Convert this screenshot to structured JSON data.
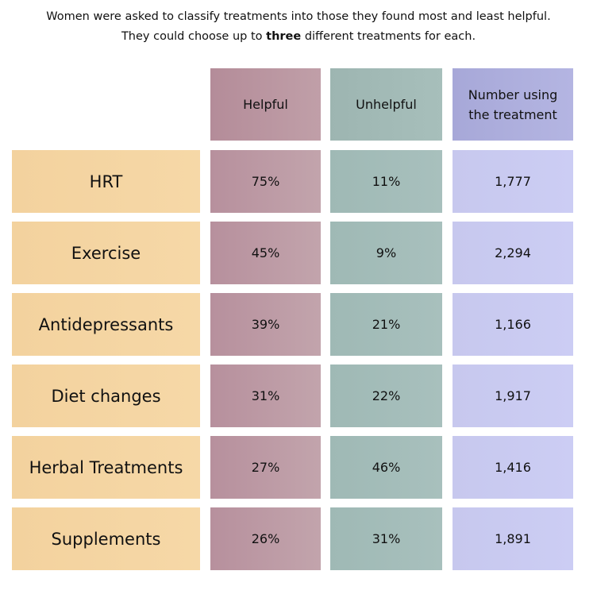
{
  "intro": {
    "line1": "Women were asked to classify treatments into those they found most and least helpful.",
    "line2_prefix": "They could choose up to ",
    "line2_bold": "three",
    "line2_suffix": " different treatments for each."
  },
  "chart_data": {
    "type": "table",
    "title": "",
    "columns": [
      "Helpful",
      "Unhelpful",
      "Number using the treatment"
    ],
    "header_lines": {
      "count": [
        "Number using",
        "the treatment"
      ]
    },
    "colors": {
      "label": "#f5d5a3",
      "helpful": "#bd98a4",
      "unhelpful": "#a3bcb8",
      "count": "#c9caf0",
      "count_header": "#adaedd"
    },
    "rows": [
      {
        "label": "HRT",
        "helpful": "75%",
        "unhelpful": "11%",
        "count": "1,777"
      },
      {
        "label": "Exercise",
        "helpful": "45%",
        "unhelpful": "9%",
        "count": "2,294"
      },
      {
        "label": "Antidepressants",
        "helpful": "39%",
        "unhelpful": "21%",
        "count": "1,166"
      },
      {
        "label": "Diet changes",
        "helpful": "31%",
        "unhelpful": "22%",
        "count": "1,917"
      },
      {
        "label": "Herbal Treatments",
        "helpful": "27%",
        "unhelpful": "46%",
        "count": "1,416"
      },
      {
        "label": "Supplements",
        "helpful": "26%",
        "unhelpful": "31%",
        "count": "1,891"
      }
    ]
  }
}
